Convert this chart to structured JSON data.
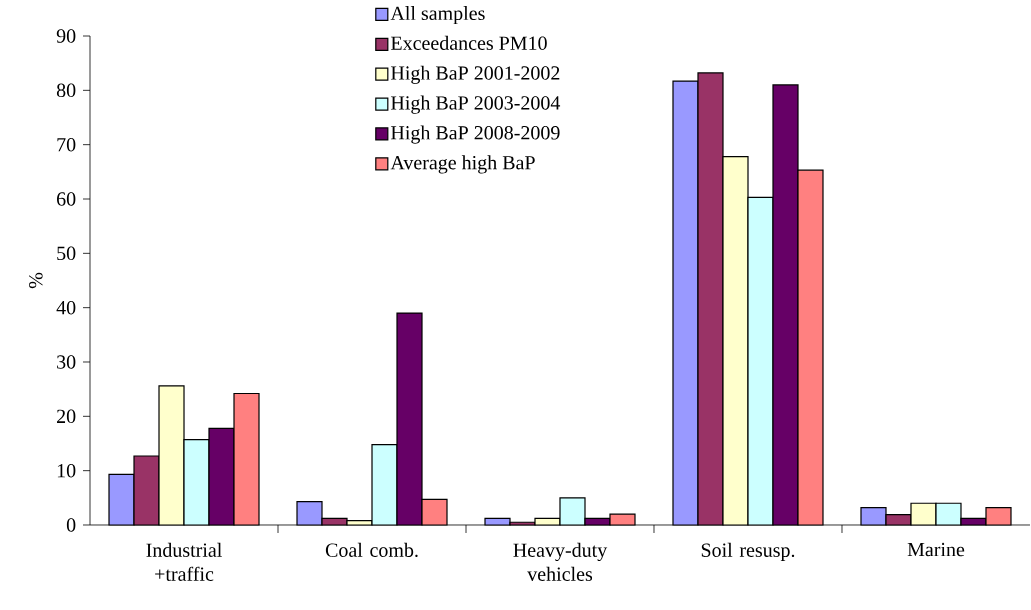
{
  "chart_data": {
    "type": "bar",
    "ylabel": "%",
    "categories": [
      "Industrial +traffic",
      "Coal comb.",
      "Heavy-duty vehicles",
      "Soil resusp.",
      "Marine"
    ],
    "series": [
      {
        "name": "All samples",
        "color": "#9999ff",
        "values": [
          9.3,
          4.3,
          1.2,
          81.7,
          3.2
        ]
      },
      {
        "name": "Exceedances PM10",
        "color": "#993366",
        "values": [
          12.7,
          1.2,
          0.5,
          83.2,
          1.9
        ]
      },
      {
        "name": "High BaP 2001-2002",
        "color": "#ffffcc",
        "values": [
          25.6,
          0.8,
          1.2,
          67.8,
          4.0
        ]
      },
      {
        "name": "High BaP 2003-2004",
        "color": "#ccffff",
        "values": [
          15.7,
          14.8,
          5.0,
          60.3,
          4.0
        ]
      },
      {
        "name": "High BaP 2008-2009",
        "color": "#660066",
        "values": [
          17.8,
          39.0,
          1.2,
          81.0,
          1.2
        ]
      },
      {
        "name": "Average high BaP",
        "color": "#ff8080",
        "values": [
          24.2,
          4.7,
          2.0,
          65.3,
          3.2
        ]
      }
    ],
    "ylim": [
      0,
      90
    ],
    "yticks": [
      0,
      10,
      20,
      30,
      40,
      50,
      60,
      70,
      80,
      90
    ],
    "legend": "top",
    "grid": false
  }
}
